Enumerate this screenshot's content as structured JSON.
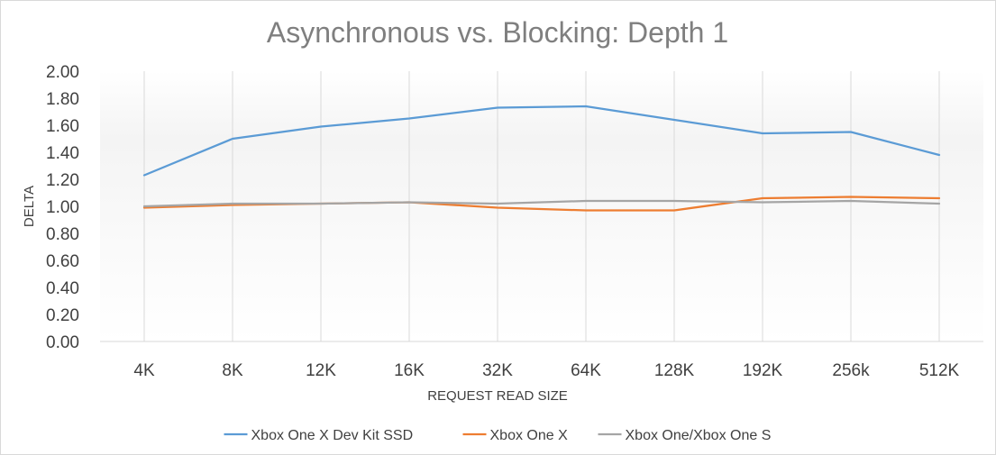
{
  "chart_data": {
    "type": "line",
    "title": "Asynchronous vs. Blocking: Depth 1",
    "xlabel": "REQUEST READ SIZE",
    "ylabel": "DELTA",
    "categories": [
      "4K",
      "8K",
      "12K",
      "16K",
      "32K",
      "64K",
      "128K",
      "192K",
      "256k",
      "512K"
    ],
    "ylim": [
      0,
      2
    ],
    "ytick_labels": [
      "0.00",
      "0.20",
      "0.40",
      "0.60",
      "0.80",
      "1.00",
      "1.20",
      "1.40",
      "1.60",
      "1.80",
      "2.00"
    ],
    "grid": "vertical",
    "legend_position": "bottom",
    "series": [
      {
        "name": "Xbox One X Dev Kit SSD",
        "color": "#5b9bd5",
        "values": [
          1.23,
          1.5,
          1.59,
          1.65,
          1.73,
          1.74,
          1.64,
          1.54,
          1.55,
          1.38
        ]
      },
      {
        "name": "Xbox One X",
        "color": "#ed7d31",
        "values": [
          0.99,
          1.01,
          1.02,
          1.03,
          0.99,
          0.97,
          0.97,
          1.06,
          1.07,
          1.06
        ]
      },
      {
        "name": "Xbox One/Xbox One S",
        "color": "#a5a5a5",
        "values": [
          1.0,
          1.02,
          1.02,
          1.03,
          1.02,
          1.04,
          1.04,
          1.03,
          1.04,
          1.02
        ]
      }
    ]
  }
}
